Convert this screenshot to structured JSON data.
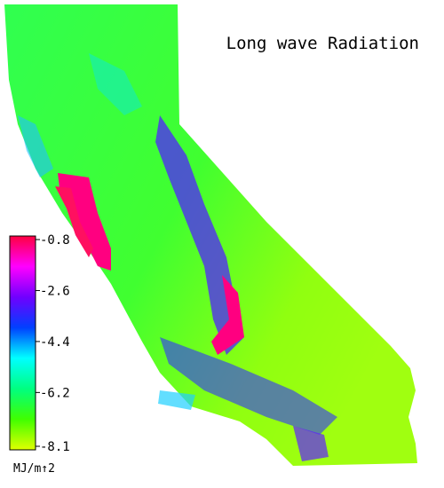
{
  "title": "Long wave Radiation",
  "colorbar": {
    "lim": [
      -8.1,
      -0.8
    ],
    "ticks": [
      -0.8,
      -2.6,
      -4.4,
      -6.2,
      -8.1
    ],
    "unit": "MJ/m↑2",
    "colors": [
      "#ff0040",
      "#ff00ff",
      "#7000ff",
      "#0040ff",
      "#00ffff",
      "#00ff80",
      "#40ff00",
      "#e0ff00"
    ]
  }
}
